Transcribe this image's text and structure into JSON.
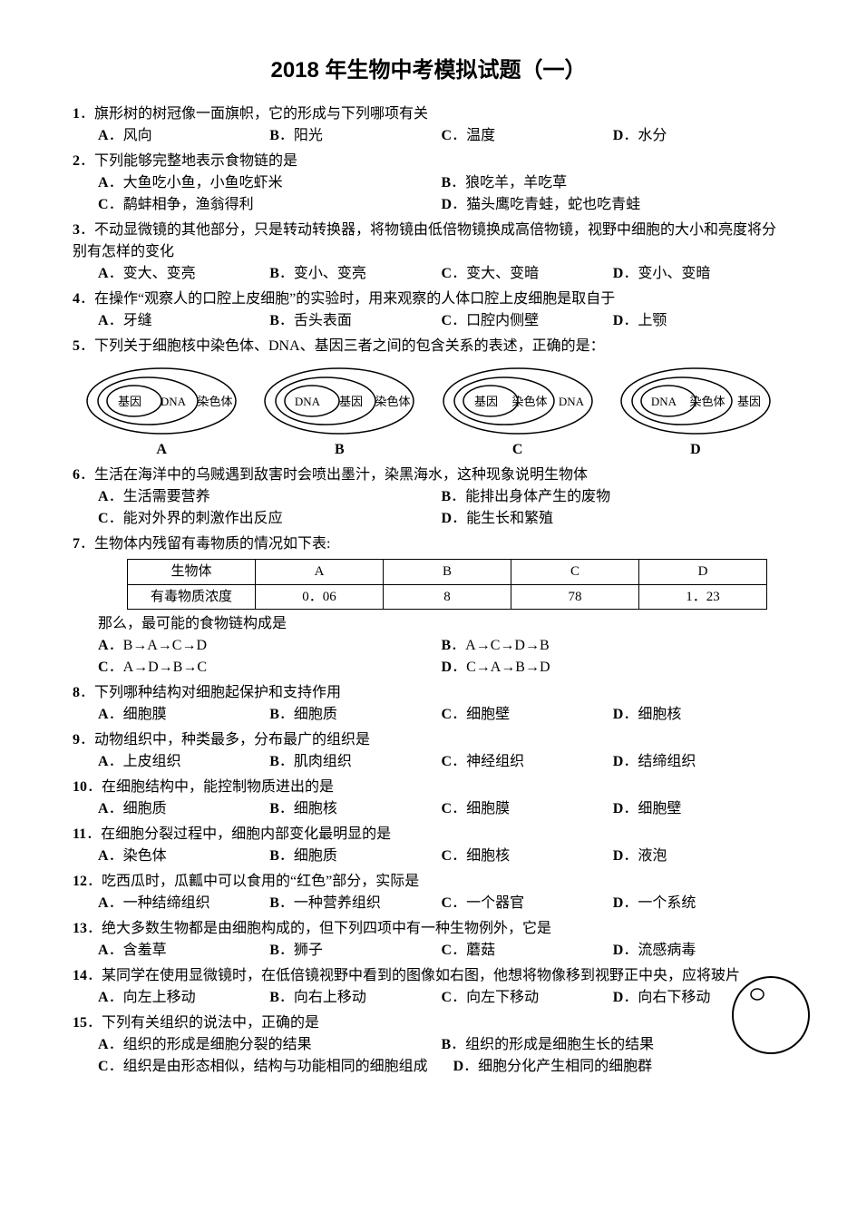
{
  "title": "2018 年生物中考模拟试题（一）",
  "questions": [
    {
      "num": "1",
      "text": "．旗形树的树冠像一面旗帜，它的形成与下列哪项有关",
      "opts": [
        {
          "l": "A",
          "t": "．风向"
        },
        {
          "l": "B",
          "t": "．阳光"
        },
        {
          "l": "C",
          "t": "．温度"
        },
        {
          "l": "D",
          "t": "．水分"
        }
      ],
      "layout": "row4"
    },
    {
      "num": "2",
      "text": "．下列能够完整地表示食物链的是",
      "opts": [
        {
          "l": "A",
          "t": "．大鱼吃小鱼，小鱼吃虾米"
        },
        {
          "l": "B",
          "t": "．狼吃羊，羊吃草"
        },
        {
          "l": "C",
          "t": "．鹬蚌相争，渔翁得利"
        },
        {
          "l": "D",
          "t": "．猫头鹰吃青蛙，蛇也吃青蛙"
        }
      ],
      "layout": "row2x2"
    },
    {
      "num": "3",
      "text": "．不动显微镜的其他部分，只是转动转换器，将物镜由低倍物镜换成高倍物镜，视野中细胞的大小和亮度将分别有怎样的变化",
      "opts": [
        {
          "l": "A",
          "t": "．变大、变亮"
        },
        {
          "l": "B",
          "t": "．变小、变亮"
        },
        {
          "l": "C",
          "t": "．变大、变暗"
        },
        {
          "l": "D",
          "t": "．变小、变暗"
        }
      ],
      "layout": "row4"
    },
    {
      "num": "4",
      "text": "．在操作“观察人的口腔上皮细胞”的实验时，用来观察的人体口腔上皮细胞是取自于",
      "opts": [
        {
          "l": "A",
          "t": "．牙缝"
        },
        {
          "l": "B",
          "t": "．舌头表面"
        },
        {
          "l": "C",
          "t": "．口腔内侧壁"
        },
        {
          "l": "D",
          "t": "．上颚"
        }
      ],
      "layout": "row4"
    },
    {
      "num": "5",
      "text": "．下列关于细胞核中染色体、DNA、基因三者之间的包含关系的表述，正确的是：",
      "opts": [],
      "layout": "venn"
    },
    {
      "num": "6",
      "text": "．生活在海洋中的乌贼遇到敌害时会喷出墨汁，染黑海水，这种现象说明生物体",
      "opts": [
        {
          "l": "A",
          "t": "．生活需要营养"
        },
        {
          "l": "B",
          "t": "．能排出身体产生的废物"
        },
        {
          "l": "C",
          "t": "．能对外界的刺激作出反应"
        },
        {
          "l": "D",
          "t": "．能生长和繁殖"
        }
      ],
      "layout": "row2x2"
    },
    {
      "num": "7",
      "text": "．生物体内残留有毒物质的情况如下表:",
      "table": {
        "headers": [
          "生物体",
          "A",
          "B",
          "C",
          "D"
        ],
        "row": [
          "有毒物质浓度",
          "0．06",
          "8",
          "78",
          "1．23"
        ]
      },
      "post": "那么，最可能的食物链构成是",
      "opts": [
        {
          "l": "A",
          "t": "．B→A→C→D"
        },
        {
          "l": "B",
          "t": "．A→C→D→B"
        },
        {
          "l": "C",
          "t": "．A→D→B→C"
        },
        {
          "l": "D",
          "t": "．C→A→B→D"
        }
      ],
      "layout": "row2x2"
    },
    {
      "num": "8",
      "text": "．下列哪种结构对细胞起保护和支持作用",
      "opts": [
        {
          "l": "A",
          "t": "．细胞膜"
        },
        {
          "l": "B",
          "t": "．细胞质"
        },
        {
          "l": "C",
          "t": "．细胞壁"
        },
        {
          "l": "D",
          "t": "．细胞核"
        }
      ],
      "layout": "row4"
    },
    {
      "num": "9",
      "text": "．动物组织中，种类最多，分布最广的组织是",
      "opts": [
        {
          "l": "A",
          "t": "．上皮组织"
        },
        {
          "l": "B",
          "t": "．肌肉组织"
        },
        {
          "l": "C",
          "t": "．神经组织"
        },
        {
          "l": "D",
          "t": "．结缔组织"
        }
      ],
      "layout": "row4"
    },
    {
      "num": "10",
      "text": "．在细胞结构中，能控制物质进出的是",
      "opts": [
        {
          "l": "A",
          "t": "．细胞质"
        },
        {
          "l": "B",
          "t": "．细胞核"
        },
        {
          "l": "C",
          "t": "．细胞膜"
        },
        {
          "l": "D",
          "t": "．细胞壁"
        }
      ],
      "layout": "row4"
    },
    {
      "num": "11",
      "text": "．在细胞分裂过程中，细胞内部变化最明显的是",
      "opts": [
        {
          "l": "A",
          "t": "．染色体"
        },
        {
          "l": "B",
          "t": "．细胞质"
        },
        {
          "l": "C",
          "t": "．细胞核"
        },
        {
          "l": "D",
          "t": "．液泡"
        }
      ],
      "layout": "row4"
    },
    {
      "num": "12",
      "text": "．吃西瓜时，瓜瓤中可以食用的“红色”部分，实际是",
      "opts": [
        {
          "l": "A",
          "t": "．一种结缔组织"
        },
        {
          "l": "B",
          "t": "．一种营养组织"
        },
        {
          "l": "C",
          "t": "．一个器官"
        },
        {
          "l": "D",
          "t": "．一个系统"
        }
      ],
      "layout": "row4"
    },
    {
      "num": "13",
      "text": "．绝大多数生物都是由细胞构成的，但下列四项中有一种生物例外，它是",
      "opts": [
        {
          "l": "A",
          "t": "．含羞草"
        },
        {
          "l": "B",
          "t": "．狮子"
        },
        {
          "l": "C",
          "t": "．蘑菇"
        },
        {
          "l": "D",
          "t": "．流感病毒"
        }
      ],
      "layout": "row4tight"
    },
    {
      "num": "14",
      "text": "．某同学在使用显微镜时，在低倍镜视野中看到的图像如右图，他想将物像移到视野正中央，应将玻片",
      "opts": [
        {
          "l": "A",
          "t": "．向左上移动"
        },
        {
          "l": "B",
          "t": "．向右上移动"
        },
        {
          "l": "C",
          "t": "．向左下移动"
        },
        {
          "l": "D",
          "t": "．向右下移动"
        }
      ],
      "layout": "row4tight",
      "circle": true
    },
    {
      "num": "15",
      "text": "．下列有关组织的说法中，正确的是",
      "opts": [
        {
          "l": "A",
          "t": "．组织的形成是细胞分裂的结果"
        },
        {
          "l": "B",
          "t": "．组织的形成是细胞生长的结果"
        },
        {
          "l": "C",
          "t": "．组织是由形态相似，结构与功能相同的细胞组成"
        },
        {
          "l": "D",
          "t": "．细胞分化产生相同的细胞群"
        }
      ],
      "layout": "row2x2wide"
    }
  ],
  "venn": {
    "labels": [
      "A",
      "B",
      "C",
      "D"
    ],
    "diagrams": [
      {
        "outer": "染色体",
        "mid": "DNA",
        "inner": "基因"
      },
      {
        "outer": "染色体",
        "mid": "基因",
        "inner": "DNA"
      },
      {
        "outer": "DNA",
        "mid": "染色体",
        "inner": "基因"
      },
      {
        "outer": "基因",
        "mid": "染色体",
        "inner": "DNA"
      }
    ]
  }
}
